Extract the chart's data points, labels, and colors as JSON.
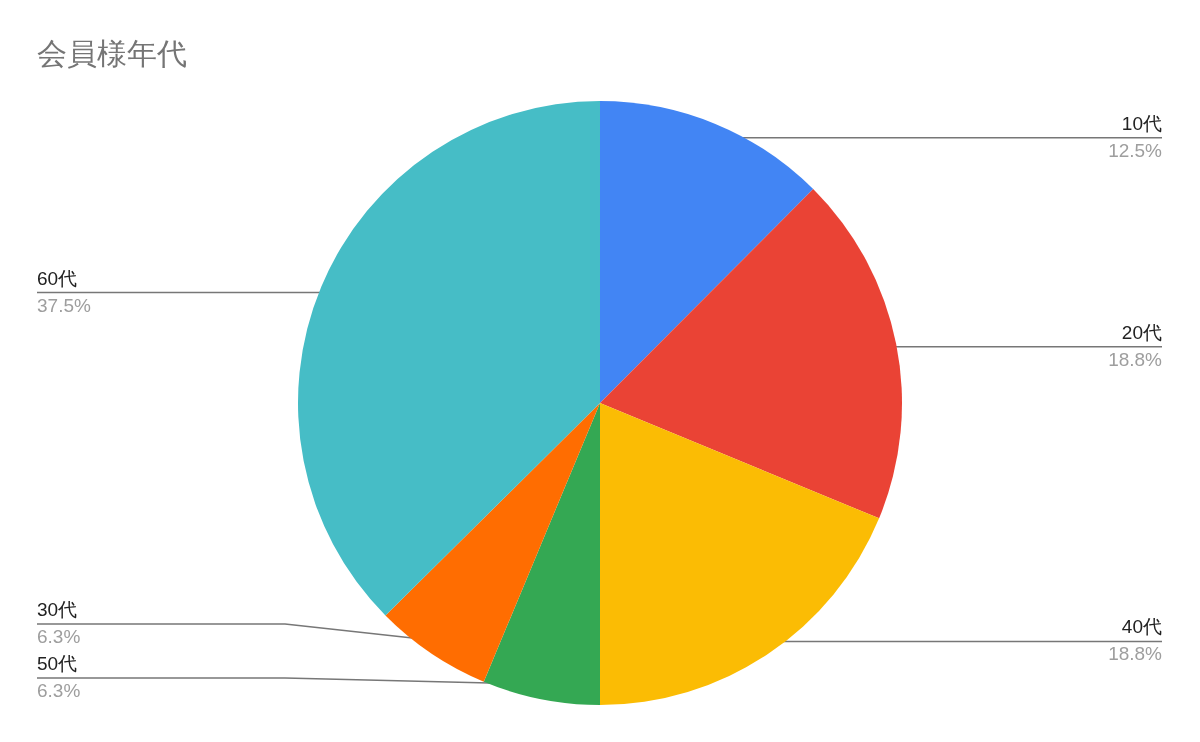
{
  "chart_data": {
    "type": "pie",
    "title": "会員様年代",
    "categories": [
      "10代",
      "20代",
      "40代",
      "50代",
      "30代",
      "60代"
    ],
    "values": [
      12.5,
      18.8,
      18.8,
      6.3,
      6.3,
      37.5
    ],
    "colors": [
      "#4285f4",
      "#ea4335",
      "#fbbc04",
      "#34a853",
      "#ff6d01",
      "#46bdc6"
    ],
    "value_labels": [
      "12.5%",
      "18.8%",
      "18.8%",
      "6.3%",
      "6.3%",
      "37.5%"
    ]
  }
}
